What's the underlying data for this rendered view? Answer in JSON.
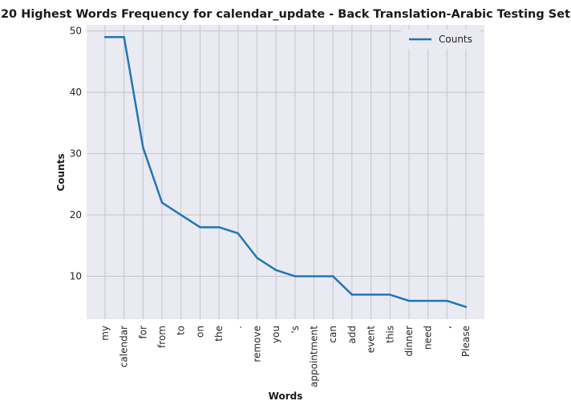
{
  "chart_data": {
    "type": "line",
    "title": "20 Highest Words Frequency for calendar_update - Back Translation-Arabic Testing Set",
    "xlabel": "Words",
    "ylabel": "Counts",
    "categories": [
      "my",
      "calendar",
      "for",
      "from",
      "to",
      "on",
      "the",
      ".",
      "remove",
      "you",
      "'s",
      "appointment",
      "can",
      "add",
      "event",
      "this",
      "dinner",
      "need",
      ",",
      "Please"
    ],
    "series": [
      {
        "name": "Counts",
        "color": "#1f77b4",
        "values": [
          49,
          49,
          31,
          22,
          20,
          18,
          18,
          17,
          13,
          11,
          10,
          10,
          10,
          7,
          7,
          7,
          6,
          6,
          6,
          5
        ]
      }
    ],
    "yticks": [
      10,
      20,
      30,
      40,
      50
    ],
    "ylim": [
      3,
      51
    ],
    "grid": true,
    "legend": "upper right",
    "background": "#eaeaf2"
  }
}
